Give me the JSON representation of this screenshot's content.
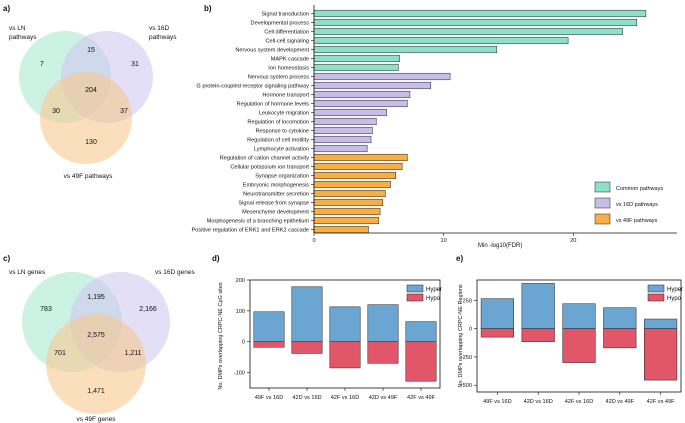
{
  "panel_labels": {
    "a": "a)",
    "b": "b)",
    "c": "c)",
    "d": "d)",
    "e": "e)"
  },
  "colors": {
    "common": "#8fe0c8",
    "set16d": "#c6bde8",
    "set49f": "#f6ae46",
    "venn_ln": "#b6ecd8",
    "venn_16d": "#cfc9f0",
    "venn_49f": "#f8c890",
    "hyper": "#6ba6d2",
    "hypo": "#e2566a"
  },
  "chart_data": [
    {
      "panel": "a",
      "type": "venn",
      "sets": [
        {
          "name": "vs LN pathways",
          "lines": [
            "vs LN",
            "pathways"
          ]
        },
        {
          "name": "vs 16D pathways",
          "lines": [
            "vs 16D",
            "pathways"
          ]
        },
        {
          "name": "vs 49F pathways",
          "lines": [
            "vs 49F pathways"
          ]
        }
      ],
      "regions": {
        "ln_only": "7",
        "d16_only": "31",
        "f49_only": "130",
        "ln_d16": "15",
        "ln_f49": "30",
        "d16_f49": "37",
        "all": "204"
      }
    },
    {
      "panel": "b",
      "type": "bar",
      "orientation": "horizontal",
      "xlabel": "Min -log10(FDR)",
      "xticks": [
        0,
        10,
        20
      ],
      "xlim": [
        0,
        28
      ],
      "categories": [
        "Signal transduction",
        "Developmental process",
        "Cell differentiation",
        "Cell-cell signaling",
        "Nervous system development",
        "MAPK cascade",
        "Ion homeostasis",
        "Nervous system process",
        "G protein-coupled receptor signaling pathway",
        "Hormone transport",
        "Regulation of hormone levels",
        "Leukocyte migration",
        "Regulation of locomotion",
        "Response to cytokine",
        "Regulation of cell motility",
        "Lymphocyte activation",
        "Regulation of cation channel activity",
        "Cellular potassium ion transport",
        "Synapse organization",
        "Embryonic morphogenesis",
        "Neurotransmitter secretion",
        "Signal release from synapse",
        "Mesenchyme development",
        "Morphogenesis of a branching epithelium",
        "Positive regulation of ERK1 and ERK2 cascade"
      ],
      "values": [
        25.6,
        24.9,
        23.8,
        19.6,
        14.1,
        6.6,
        6.5,
        10.5,
        9.0,
        7.4,
        7.2,
        5.6,
        4.8,
        4.5,
        4.4,
        4.1,
        7.2,
        6.8,
        6.3,
        5.9,
        5.5,
        5.3,
        5.1,
        5.0,
        4.2
      ],
      "groups": [
        "common",
        "common",
        "common",
        "common",
        "common",
        "common",
        "common",
        "16d",
        "16d",
        "16d",
        "16d",
        "16d",
        "16d",
        "16d",
        "16d",
        "16d",
        "49f",
        "49f",
        "49f",
        "49f",
        "49f",
        "49f",
        "49f",
        "49f",
        "49f"
      ],
      "legend": [
        {
          "key": "common",
          "label": "Common pathways"
        },
        {
          "key": "16d",
          "label": "vs 16D pathways"
        },
        {
          "key": "49f",
          "label": "vs 49F pathways"
        }
      ]
    },
    {
      "panel": "c",
      "type": "venn",
      "sets": [
        {
          "name": "vs LN genes",
          "lines": [
            "vs LN genes"
          ]
        },
        {
          "name": "vs 16D genes",
          "lines": [
            "vs 16D genes"
          ]
        },
        {
          "name": "vs 49F genes",
          "lines": [
            "vs 49F genes"
          ]
        }
      ],
      "regions": {
        "ln_only": "783",
        "d16_only": "2,166",
        "f49_only": "1,471",
        "ln_d16": "1,195",
        "ln_f49": "701",
        "d16_f49": "1,211",
        "all": "2,575"
      }
    },
    {
      "panel": "d",
      "type": "bar",
      "stacked": "diverging",
      "ylabel": "No. DMPs overlapping CRPC-NE CpG sites",
      "ylim": [
        -150,
        200
      ],
      "yticks": [
        -100,
        0,
        100,
        200
      ],
      "categories": [
        "49F vs 16D",
        "42D vs 16D",
        "42F vs 16D",
        "42D vs 49F",
        "42F vs 49F"
      ],
      "series": [
        {
          "name": "Hyper",
          "values": [
            97,
            178,
            113,
            120,
            65
          ]
        },
        {
          "name": "Hypo",
          "values": [
            -18,
            -38,
            -85,
            -70,
            -128
          ]
        }
      ]
    },
    {
      "panel": "e",
      "type": "bar",
      "stacked": "diverging",
      "ylabel": "No. DMPs overlapping CRPC-NE Regions",
      "ylim": [
        -560,
        430
      ],
      "yticks": [
        -500,
        -250,
        0,
        250
      ],
      "categories": [
        "49F vs 16D",
        "42D vs 16D",
        "42F vs 16D",
        "42D vs 49F",
        "42F vs 49F"
      ],
      "series": [
        {
          "name": "Hyper",
          "values": [
            265,
            400,
            220,
            185,
            85
          ]
        },
        {
          "name": "Hypo",
          "values": [
            -75,
            -115,
            -300,
            -170,
            -455
          ]
        }
      ]
    }
  ]
}
